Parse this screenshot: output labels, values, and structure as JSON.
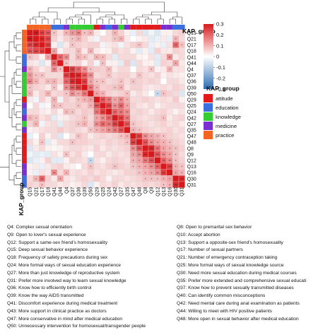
{
  "chart_data": {
    "type": "heatmap",
    "title": "",
    "xlabel": "",
    "ylabel": "",
    "annotation_track_label": "KAP_group",
    "variables": [
      "Q15",
      "Q21",
      "Q17",
      "Q18",
      "Q41",
      "Q44",
      "Q4",
      "Q37",
      "Q36",
      "Q39",
      "Q50",
      "Q29",
      "Q25",
      "Q24",
      "Q42",
      "Q27",
      "Q35",
      "Q47",
      "Q48",
      "Q8",
      "Q9",
      "Q12",
      "Q13",
      "Q16",
      "Q30",
      "Q31"
    ],
    "groups": [
      "practice",
      "practice",
      "practice",
      "practice",
      "education",
      "education",
      "medicine",
      "knowledge",
      "knowledge",
      "knowledge",
      "knowledge",
      "attitude",
      "medicine",
      "education",
      "medicine",
      "knowledge",
      "medicine",
      "attitude",
      "attitude",
      "attitude",
      "attitude",
      "attitude",
      "medicine",
      "medicine",
      "education",
      "education"
    ],
    "group_colors": {
      "attitude": "#e31a1c",
      "education": "#3b6fe0",
      "knowledge": "#33cc33",
      "medicine": "#7a2fd0",
      "practice": "#f26522"
    },
    "legend_groups": [
      "attitude",
      "education",
      "knowledge",
      "medicine",
      "practice"
    ],
    "color_scale": {
      "min": -0.3,
      "max": 0.3,
      "ticks": [
        0.3,
        0.2,
        0.1,
        0,
        -0.1,
        -0.2,
        -0.3
      ],
      "low_color": "#2c6cb0",
      "mid_color": "#ffffff",
      "high_color": "#d7191c"
    },
    "values": [
      [
        1.0,
        0.3,
        0.25,
        0.22,
        0.08,
        0.04,
        0.1,
        0.14,
        0.16,
        0.08,
        0.1,
        0.03,
        0.0,
        0.05,
        0.1,
        0.06,
        0.02,
        -0.03,
        0.05,
        -0.05,
        -0.02,
        -0.05,
        0.02,
        0.02,
        0.05,
        0.06
      ],
      [
        0.3,
        1.0,
        0.28,
        0.24,
        0.06,
        0.03,
        0.06,
        0.08,
        0.1,
        0.06,
        0.03,
        -0.02,
        0.05,
        0.05,
        0.08,
        0.1,
        0.03,
        0.0,
        0.02,
        0.03,
        -0.04,
        -0.03,
        0.03,
        -0.03,
        0.1,
        0.05
      ],
      [
        0.25,
        0.28,
        1.0,
        0.25,
        0.02,
        -0.05,
        0.03,
        0.08,
        0.06,
        0.05,
        0.06,
        0.06,
        -0.02,
        0.03,
        0.04,
        -0.02,
        0.04,
        0.06,
        0.08,
        0.05,
        -0.03,
        0.02,
        -0.03,
        0.04,
        0.2,
        0.08
      ],
      [
        0.22,
        0.24,
        0.25,
        1.0,
        0.12,
        0.02,
        0.05,
        0.05,
        0.09,
        0.03,
        0.1,
        0.03,
        0.01,
        0.02,
        0.06,
        0.04,
        0.05,
        0.02,
        -0.04,
        0.02,
        -0.04,
        0.06,
        0.03,
        0.03,
        0.06,
        0.05
      ],
      [
        0.08,
        0.06,
        0.02,
        0.12,
        1.0,
        0.2,
        0.15,
        0.05,
        0.1,
        0.08,
        0.05,
        0.1,
        0.09,
        0.05,
        -0.04,
        0.05,
        0.05,
        0.05,
        0.02,
        0.01,
        0.04,
        -0.04,
        0.05,
        0.15,
        0.03,
        0.05
      ],
      [
        0.04,
        0.03,
        -0.05,
        0.02,
        0.2,
        1.0,
        0.08,
        0.05,
        0.06,
        0.02,
        0.06,
        -0.02,
        0.08,
        0.02,
        0.02,
        -0.04,
        0.07,
        -0.05,
        0.05,
        0.02,
        0.02,
        -0.04,
        0.06,
        0.05,
        0.12,
        0.03
      ],
      [
        0.1,
        0.06,
        0.03,
        0.05,
        0.15,
        0.08,
        1.0,
        0.25,
        0.2,
        0.15,
        0.08,
        0.07,
        0.06,
        0.09,
        0.03,
        0.05,
        0.05,
        0.0,
        0.05,
        0.04,
        0.08,
        0.02,
        0.03,
        0.1,
        0.04,
        0.04
      ],
      [
        0.14,
        0.08,
        0.08,
        0.05,
        0.05,
        0.05,
        0.25,
        1.0,
        0.28,
        0.22,
        0.15,
        0.05,
        0.06,
        0.08,
        0.05,
        0.06,
        0.06,
        0.04,
        0.08,
        0.05,
        0.04,
        0.06,
        0.02,
        0.04,
        0.03,
        0.02
      ],
      [
        0.16,
        0.1,
        0.06,
        0.09,
        0.1,
        0.06,
        0.2,
        0.28,
        1.0,
        0.25,
        0.12,
        0.08,
        0.08,
        0.05,
        0.06,
        0.08,
        0.05,
        0.08,
        0.06,
        0.05,
        0.06,
        0.05,
        0.0,
        0.05,
        0.05,
        0.03
      ],
      [
        0.08,
        0.06,
        0.05,
        0.03,
        0.08,
        0.02,
        0.15,
        0.22,
        0.25,
        1.0,
        0.18,
        0.1,
        0.06,
        0.07,
        0.08,
        0.1,
        0.04,
        0.06,
        0.06,
        0.04,
        0.03,
        0.04,
        0.05,
        0.04,
        0.06,
        0.05
      ],
      [
        0.1,
        0.03,
        0.06,
        0.1,
        0.05,
        0.06,
        0.08,
        0.15,
        0.12,
        0.18,
        1.0,
        0.12,
        0.1,
        0.06,
        0.05,
        0.06,
        0.08,
        0.03,
        0.05,
        0.03,
        0.0,
        -0.08,
        0.08,
        0.06,
        0.05,
        -0.05
      ],
      [
        0.03,
        -0.02,
        0.06,
        0.03,
        0.1,
        -0.02,
        0.07,
        0.05,
        0.08,
        0.1,
        0.12,
        1.0,
        0.22,
        0.18,
        0.12,
        0.15,
        0.1,
        0.05,
        0.05,
        0.06,
        0.05,
        0.04,
        0.05,
        0.04,
        0.07,
        0.02
      ],
      [
        0.0,
        0.05,
        -0.02,
        0.01,
        0.09,
        0.08,
        0.06,
        0.06,
        0.08,
        0.06,
        0.1,
        0.22,
        1.0,
        0.25,
        0.15,
        0.2,
        0.12,
        0.06,
        0.04,
        0.03,
        0.05,
        0.02,
        0.04,
        0.05,
        0.05,
        0.05
      ],
      [
        0.05,
        0.05,
        0.03,
        0.02,
        0.05,
        0.02,
        0.09,
        0.08,
        0.05,
        0.07,
        0.06,
        0.18,
        0.25,
        1.0,
        0.2,
        0.18,
        0.15,
        0.05,
        0.06,
        0.05,
        0.03,
        0.05,
        0.06,
        0.04,
        0.02,
        0.04
      ],
      [
        0.1,
        0.08,
        0.04,
        0.06,
        -0.04,
        0.02,
        0.03,
        0.05,
        0.06,
        0.08,
        0.05,
        0.12,
        0.15,
        0.2,
        1.0,
        0.25,
        0.18,
        0.06,
        0.05,
        0.04,
        0.05,
        0.06,
        0.08,
        0.03,
        0.05,
        0.06
      ],
      [
        0.06,
        0.1,
        -0.02,
        0.04,
        0.05,
        -0.04,
        0.05,
        0.06,
        0.08,
        0.1,
        0.06,
        0.15,
        0.2,
        0.18,
        0.25,
        1.0,
        0.22,
        0.08,
        0.06,
        0.05,
        0.04,
        0.05,
        0.06,
        0.04,
        0.05,
        0.03
      ],
      [
        0.02,
        0.03,
        0.04,
        0.05,
        0.05,
        0.07,
        0.05,
        0.06,
        0.05,
        0.04,
        0.08,
        0.1,
        0.12,
        0.15,
        0.18,
        0.22,
        1.0,
        0.1,
        0.08,
        0.06,
        0.05,
        0.04,
        0.05,
        0.06,
        0.04,
        0.05
      ],
      [
        -0.03,
        0.0,
        0.06,
        0.02,
        0.05,
        -0.05,
        0.0,
        0.04,
        0.08,
        0.06,
        0.03,
        0.05,
        0.06,
        0.05,
        0.06,
        0.08,
        0.1,
        1.0,
        0.25,
        0.15,
        0.12,
        0.1,
        0.08,
        0.06,
        0.05,
        0.04
      ],
      [
        0.05,
        0.02,
        0.08,
        -0.04,
        0.02,
        0.05,
        0.05,
        0.08,
        0.06,
        0.06,
        0.05,
        0.05,
        0.04,
        0.06,
        0.05,
        0.06,
        0.08,
        0.25,
        1.0,
        0.22,
        0.15,
        0.12,
        0.1,
        0.08,
        0.06,
        0.05
      ],
      [
        -0.05,
        0.03,
        0.05,
        0.02,
        0.01,
        0.02,
        0.04,
        0.05,
        0.05,
        0.04,
        0.03,
        0.06,
        0.03,
        0.05,
        0.04,
        0.05,
        0.06,
        0.15,
        0.22,
        1.0,
        0.28,
        0.18,
        0.12,
        0.1,
        0.08,
        0.06
      ],
      [
        -0.02,
        -0.04,
        -0.03,
        -0.04,
        0.04,
        0.02,
        0.08,
        0.04,
        0.06,
        0.03,
        0.0,
        0.05,
        0.05,
        0.03,
        0.05,
        0.04,
        0.05,
        0.12,
        0.15,
        0.28,
        1.0,
        0.22,
        0.15,
        0.12,
        0.08,
        0.05
      ],
      [
        -0.05,
        -0.03,
        0.02,
        0.06,
        -0.04,
        -0.04,
        0.02,
        0.06,
        0.05,
        0.04,
        -0.08,
        0.04,
        0.02,
        0.05,
        0.06,
        0.05,
        0.04,
        0.1,
        0.12,
        0.18,
        0.22,
        1.0,
        0.2,
        0.15,
        0.08,
        0.06
      ],
      [
        0.02,
        0.03,
        -0.03,
        0.03,
        0.05,
        0.06,
        0.03,
        0.02,
        0.0,
        0.05,
        0.08,
        0.05,
        0.04,
        0.06,
        0.08,
        0.06,
        0.05,
        0.08,
        0.1,
        0.12,
        0.15,
        0.2,
        1.0,
        0.25,
        0.1,
        0.08
      ],
      [
        0.02,
        -0.03,
        0.04,
        0.03,
        0.15,
        0.05,
        0.1,
        0.04,
        0.05,
        0.04,
        0.06,
        0.04,
        0.05,
        0.04,
        0.03,
        0.04,
        0.06,
        0.06,
        0.08,
        0.1,
        0.12,
        0.15,
        0.25,
        1.0,
        0.12,
        0.1
      ],
      [
        0.05,
        0.1,
        0.2,
        0.06,
        0.03,
        0.12,
        0.04,
        0.03,
        0.05,
        0.06,
        0.05,
        0.07,
        0.05,
        0.02,
        0.05,
        0.05,
        0.04,
        0.05,
        0.06,
        0.08,
        0.08,
        0.08,
        0.1,
        0.12,
        1.0,
        0.28
      ],
      [
        0.06,
        0.05,
        0.08,
        0.05,
        0.05,
        0.03,
        0.04,
        0.02,
        0.03,
        0.05,
        -0.05,
        0.02,
        0.05,
        0.04,
        0.06,
        0.03,
        0.05,
        0.04,
        0.05,
        0.06,
        0.05,
        0.06,
        0.08,
        0.1,
        0.28,
        1.0
      ]
    ],
    "significance_rule": "one star if |r| >= 0.08, two stars if |r| >= 0.15, three stars if |r| >= 0.22 (off-diagonal)"
  },
  "notes": [
    {
      "column": 1,
      "text": "Q4: Complex sexual orientation"
    },
    {
      "column": 1,
      "text": "Q9: Open to lover's sexual experience"
    },
    {
      "column": 1,
      "text": "Q12: Support a same-sex friend's homosexuality"
    },
    {
      "column": 1,
      "text": "Q15: Deep sexual behavior experience"
    },
    {
      "column": 1,
      "text": "Q18: Frequency of safety precautions during sex"
    },
    {
      "column": 1,
      "text": "Q24: More formal ways of sexual education experience"
    },
    {
      "column": 1,
      "text": "Q27: More than just knowledge of reproductive system"
    },
    {
      "column": 1,
      "text": "Q31: Prefer more involved way to learn sexual knowledge"
    },
    {
      "column": 1,
      "text": "Q36: Know how to efficiently birth control"
    },
    {
      "column": 1,
      "text": "Q39: Know the way AIDS transmitted"
    },
    {
      "column": 1,
      "text": "Q41: Discomfort experience during medical treatment"
    },
    {
      "column": 1,
      "text": "Q43: More support in clinical practice as doctors"
    },
    {
      "column": 1,
      "text": "Q47: More conservative in mind after medical education"
    },
    {
      "column": 1,
      "text": "Q50: Unnecessary intervention for homosexual/transgender people"
    },
    {
      "column": 2,
      "text": "Q8: Open to premarital sex behavior"
    },
    {
      "column": 2,
      "text": "Q10: Accept abortion"
    },
    {
      "column": 2,
      "text": "Q13: Support a opposite-sex friend's homosexuality"
    },
    {
      "column": 2,
      "text": "Q17: Number of sexual partners"
    },
    {
      "column": 2,
      "text": "Q21: Number of emergency contraception taking"
    },
    {
      "column": 2,
      "text": "Q25: More formal ways of sexual knowledge source"
    },
    {
      "column": 2,
      "text": "Q30: Need more sexual education during medical courses"
    },
    {
      "column": 2,
      "text": "Q35: Prefer more extended and comprehensive sexual educati"
    },
    {
      "column": 2,
      "text": "Q37: Know how to prevent sexually transmitted diseases"
    },
    {
      "column": 2,
      "text": "Q40: Can identify common misconceptions"
    },
    {
      "column": 2,
      "text": "Q42: Need mental care during anal examination as patients"
    },
    {
      "column": 2,
      "text": "Q44: Willing to meet with HIV positive patients"
    },
    {
      "column": 2,
      "text": "Q48: More open in sexual behavior after medical education"
    }
  ]
}
